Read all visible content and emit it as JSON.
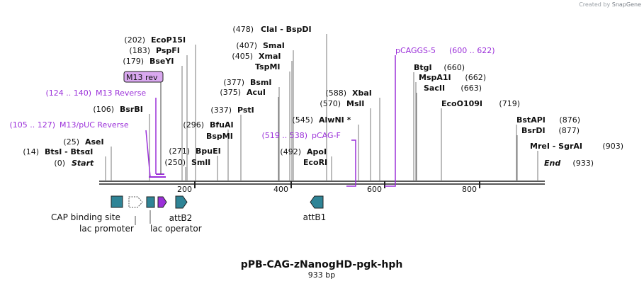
{
  "credit": {
    "created_by": "Created by",
    "brand": "SnapGene"
  },
  "title": "pPB-CAG-zNanogHD-pgk-hph",
  "length_label": "933 bp",
  "start": {
    "pos": "(0)",
    "label": "Start"
  },
  "end": {
    "pos": "(933)",
    "label": "End"
  },
  "sites": [
    {
      "pos": "(14)",
      "text": "BtsI - BtsαI"
    },
    {
      "pos": "(25)",
      "text": "AseI"
    },
    {
      "pos": "(106)",
      "text": "BsrBI"
    },
    {
      "pos": "(179)",
      "text": "BseYI"
    },
    {
      "pos": "(183)",
      "text": "PspFI"
    },
    {
      "pos": "(202)",
      "text": "EcoP15I"
    },
    {
      "pos": "(250)",
      "text": "SmlI"
    },
    {
      "pos": "(271)",
      "text": "BpuEI"
    },
    {
      "pos": "(296)",
      "text": "BfuAI"
    },
    {
      "pos": "",
      "text": "BspMI"
    },
    {
      "pos": "(337)",
      "text": "PstI"
    },
    {
      "pos": "(375)",
      "text": "AcuI"
    },
    {
      "pos": "(377)",
      "text": "BsmI"
    },
    {
      "pos": "",
      "text": "TspMI"
    },
    {
      "pos": "(405)",
      "text": "XmaI"
    },
    {
      "pos": "(407)",
      "text": "SmaI"
    },
    {
      "pos": "(478)",
      "text": "ClaI  -  BspDI"
    },
    {
      "pos": "(492)",
      "text": "ApoI"
    },
    {
      "pos": "",
      "text": "EcoRI"
    },
    {
      "pos": "(545)",
      "text": "AlwNI *"
    },
    {
      "pos": "(570)",
      "text": "MslI"
    },
    {
      "pos": "(588)",
      "text": "XbaI"
    },
    {
      "pos": "(660)",
      "text": "BtgI"
    },
    {
      "pos": "(662)",
      "text": "MspA1I"
    },
    {
      "pos": "(663)",
      "text": "SacII"
    },
    {
      "pos": "(719)",
      "text": "EcoO109I"
    },
    {
      "pos": "(876)",
      "text": "BstAPI"
    },
    {
      "pos": "(877)",
      "text": "BsrDI"
    },
    {
      "pos": "(903)",
      "text": "MreI  -  SgrAI"
    }
  ],
  "primers": [
    {
      "range": "(105 .. 127)",
      "name": "M13/pUC Reverse"
    },
    {
      "range": "(124 .. 140)",
      "name": "M13 Reverse"
    },
    {
      "range": "(519 .. 538)",
      "name": "pCAG-F"
    },
    {
      "range": "(600 .. 622)",
      "name": "pCAGGS-5"
    }
  ],
  "m13rev_label": "M13 rev",
  "ruler": [
    "200",
    "400",
    "600",
    "800"
  ],
  "features": [
    {
      "name": "CAP binding site"
    },
    {
      "name": "lac promoter"
    },
    {
      "name": "lac operator"
    },
    {
      "name": "attB2"
    },
    {
      "name": "attB1"
    }
  ],
  "colors": {
    "feature_teal": "#2f8496",
    "primer_purple": "#9b30d9",
    "m13_fill": "#d9a8ef"
  }
}
